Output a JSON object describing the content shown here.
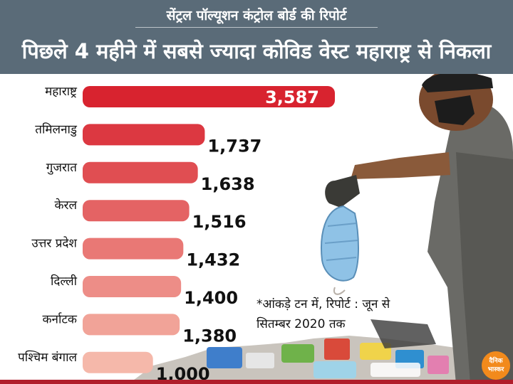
{
  "header": {
    "kicker": "सेंट्रल पॉल्यूशन कंट्रोल बोर्ड की रिपोर्ट",
    "title": "पिछले 4 महीने में सबसे ज्यादा कोविड वेस्ट महाराष्ट्र से निकला"
  },
  "note": {
    "line1": "*आंकड़े टन में, रिपोर्ट : जून से",
    "line2": "सितम्बर 2020 तक"
  },
  "logo": {
    "line1": "दैनिक",
    "line2": "भास्कर"
  },
  "colors": {
    "header_bg": "#5a6b78",
    "bar_top": "#d8232f",
    "bar_bottom": "#f5b8aa"
  },
  "chart_data": {
    "type": "bar",
    "orientation": "horizontal",
    "title": "पिछले 4 महीने में सबसे ज्यादा कोविड वेस्ट महाराष्ट्र से निकला",
    "categories": [
      "महाराष्ट्र",
      "तमिलनाडु",
      "गुजरात",
      "केरल",
      "उत्तर प्रदेश",
      "दिल्ली",
      "कर्नाटक",
      "पश्चिम बंगाल"
    ],
    "values": [
      3587,
      1737,
      1638,
      1516,
      1432,
      1400,
      1380,
      1000
    ],
    "value_labels": [
      "3,587",
      "1,737",
      "1,638",
      "1,516",
      "1,432",
      "1,400",
      "1,380",
      "1,000"
    ],
    "unit_note": "*आंकड़े टन में, रिपोर्ट : जून से सितम्बर 2020 तक",
    "xlim": [
      0,
      3587
    ],
    "grid": false,
    "legend": "none"
  }
}
